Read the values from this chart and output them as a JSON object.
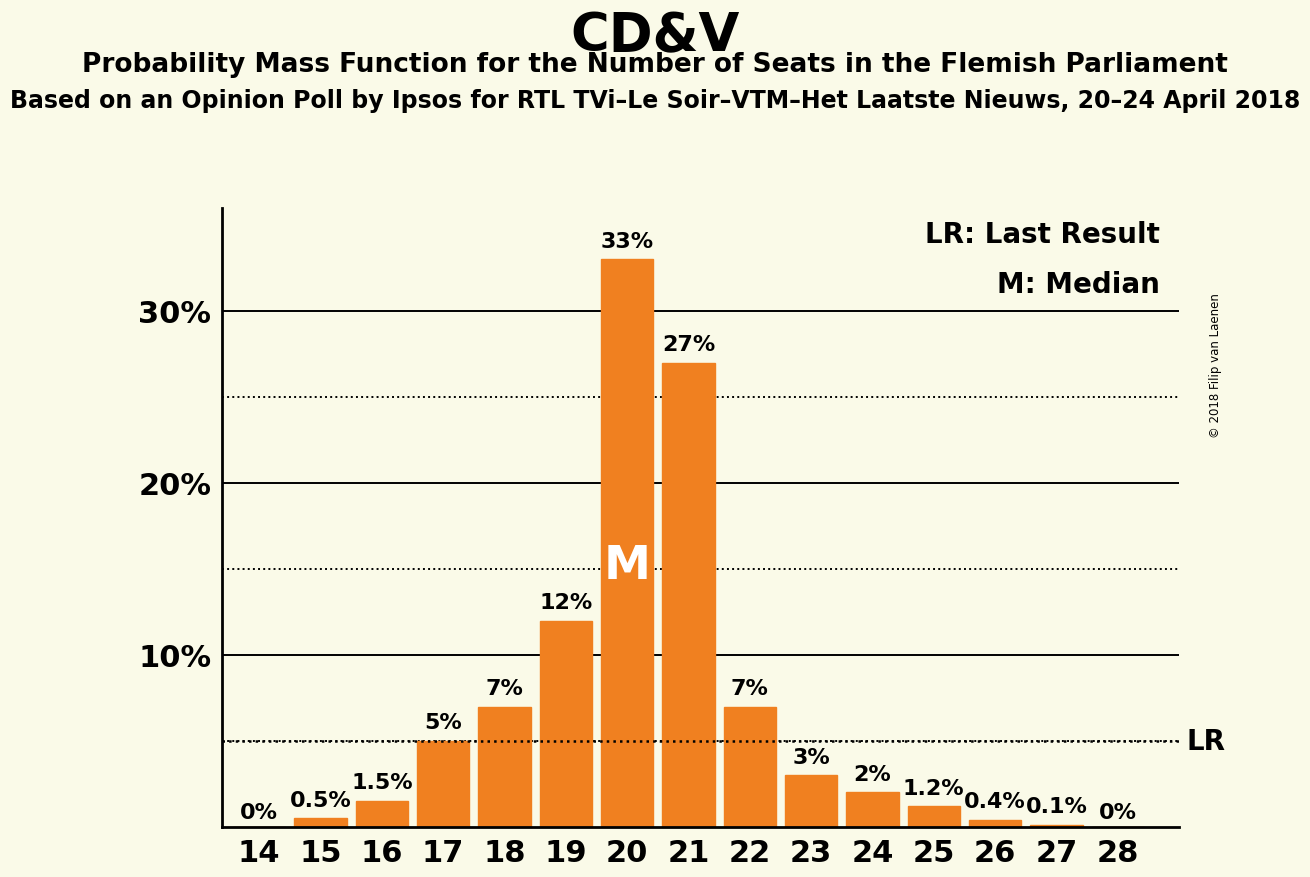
{
  "title": "CD&V",
  "subtitle": "Probability Mass Function for the Number of Seats in the Flemish Parliament",
  "subsubtitle": "Based on an Opinion Poll by Ipsos for RTL TVi–Le Soir–VTM–Het Laatste Nieuws, 20–24 April 2018",
  "copyright": "© 2018 Filip van Laenen",
  "seats": [
    14,
    15,
    16,
    17,
    18,
    19,
    20,
    21,
    22,
    23,
    24,
    25,
    26,
    27,
    28
  ],
  "probabilities": [
    0.0,
    0.5,
    1.5,
    5.0,
    7.0,
    12.0,
    33.0,
    27.0,
    7.0,
    3.0,
    2.0,
    1.2,
    0.4,
    0.1,
    0.0
  ],
  "bar_color": "#F08020",
  "background_color": "#FAFAE8",
  "text_color": "#000000",
  "median_seat": 20,
  "lr_value": 5.0,
  "ylabel_ticks": [
    10,
    20,
    30
  ],
  "dotted_ticks": [
    5,
    15,
    25
  ],
  "ylim": [
    0,
    36
  ],
  "labels": [
    "0%",
    "0.5%",
    "1.5%",
    "5%",
    "7%",
    "12%",
    "33%",
    "27%",
    "7%",
    "3%",
    "2%",
    "1.2%",
    "0.4%",
    "0.1%",
    "0%"
  ],
  "legend_lr": "LR: Last Result",
  "legend_m": "M: Median",
  "title_fontsize": 38,
  "subtitle_fontsize": 19,
  "subsubtitle_fontsize": 17,
  "axis_fontsize": 22,
  "bar_label_fontsize": 16,
  "legend_fontsize": 20,
  "median_label_fontsize": 34
}
